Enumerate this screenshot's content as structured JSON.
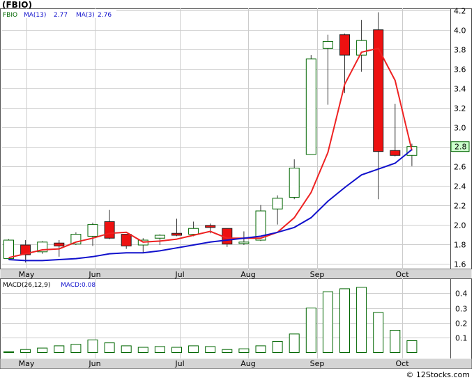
{
  "title": "(FBIO)",
  "watermark": "© 12Stocks.com",
  "legend": {
    "ticker": "FBIO",
    "ma13_label": "MA(13)",
    "ma13_value": "2.77",
    "ma3_label": "MA(3)",
    "ma3_value": "2.76"
  },
  "macd_legend": {
    "label": "MACD(26,12,9)",
    "value_label": "MACD:0.08"
  },
  "last_price_tag": "2.8",
  "colors": {
    "up": "#ffffff",
    "up_border": "#006600",
    "down": "#ee1111",
    "ma13": "#1111cc",
    "ma3": "#ee2222",
    "ticker_text": "#006600",
    "ma_text": "#1111cc",
    "tag_bg": "#ccffcc"
  },
  "chart_data": [
    {
      "type": "candlestick",
      "x_labels": [
        "May",
        "Jun",
        "Jul",
        "Aug",
        "Sep",
        "Oct"
      ],
      "y_ticks": [
        1.6,
        1.8,
        2.0,
        2.2,
        2.4,
        2.6,
        2.8,
        3.0,
        3.2,
        3.4,
        3.6,
        3.8,
        4.0,
        4.2
      ],
      "ylim": [
        1.54,
        4.22
      ],
      "candles": [
        {
          "o": 1.65,
          "h": 1.85,
          "l": 1.64,
          "c": 1.84
        },
        {
          "o": 1.79,
          "h": 1.84,
          "l": 1.61,
          "c": 1.69
        },
        {
          "o": 1.72,
          "h": 1.83,
          "l": 1.7,
          "c": 1.82
        },
        {
          "o": 1.81,
          "h": 1.84,
          "l": 1.67,
          "c": 1.78
        },
        {
          "o": 1.8,
          "h": 1.92,
          "l": 1.79,
          "c": 1.9
        },
        {
          "o": 1.88,
          "h": 2.02,
          "l": 1.78,
          "c": 2.0
        },
        {
          "o": 2.03,
          "h": 2.15,
          "l": 1.85,
          "c": 1.86
        },
        {
          "o": 1.9,
          "h": 1.9,
          "l": 1.75,
          "c": 1.78
        },
        {
          "o": 1.79,
          "h": 1.86,
          "l": 1.71,
          "c": 1.84
        },
        {
          "o": 1.86,
          "h": 1.9,
          "l": 1.79,
          "c": 1.89
        },
        {
          "o": 1.91,
          "h": 2.06,
          "l": 1.88,
          "c": 1.89
        },
        {
          "o": 1.9,
          "h": 2.03,
          "l": 1.88,
          "c": 1.96
        },
        {
          "o": 1.99,
          "h": 2.01,
          "l": 1.91,
          "c": 1.97
        },
        {
          "o": 1.96,
          "h": 1.96,
          "l": 1.77,
          "c": 1.8
        },
        {
          "o": 1.81,
          "h": 1.93,
          "l": 1.79,
          "c": 1.82
        },
        {
          "o": 1.84,
          "h": 2.2,
          "l": 1.83,
          "c": 2.14
        },
        {
          "o": 2.16,
          "h": 2.3,
          "l": 2.0,
          "c": 2.27
        },
        {
          "o": 2.28,
          "h": 2.67,
          "l": 2.26,
          "c": 2.58
        },
        {
          "o": 2.72,
          "h": 3.74,
          "l": 2.72,
          "c": 3.7
        },
        {
          "o": 3.81,
          "h": 3.95,
          "l": 3.23,
          "c": 3.88
        },
        {
          "o": 3.95,
          "h": 3.96,
          "l": 3.35,
          "c": 3.74
        },
        {
          "o": 3.74,
          "h": 4.1,
          "l": 3.57,
          "c": 3.89
        },
        {
          "o": 4.0,
          "h": 4.18,
          "l": 2.26,
          "c": 2.75
        },
        {
          "o": 2.76,
          "h": 3.24,
          "l": 2.7,
          "c": 2.71
        },
        {
          "o": 2.71,
          "h": 2.83,
          "l": 2.6,
          "c": 2.8
        }
      ],
      "ma13": [
        1.64,
        1.63,
        1.63,
        1.64,
        1.65,
        1.67,
        1.7,
        1.71,
        1.71,
        1.73,
        1.76,
        1.79,
        1.82,
        1.84,
        1.86,
        1.88,
        1.92,
        1.97,
        2.07,
        2.24,
        2.38,
        2.51,
        2.57,
        2.63,
        2.77
      ],
      "ma3": [
        1.66,
        1.7,
        1.74,
        1.75,
        1.82,
        1.86,
        1.91,
        1.92,
        1.82,
        1.83,
        1.85,
        1.89,
        1.93,
        1.86,
        1.86,
        1.86,
        1.92,
        2.07,
        2.33,
        2.74,
        3.44,
        3.77,
        3.81,
        3.48,
        2.76
      ]
    },
    {
      "type": "bar",
      "name": "MACD(26,12,9)",
      "x_labels": [
        "May",
        "Jun",
        "Jul",
        "Aug",
        "Sep",
        "Oct"
      ],
      "y_ticks": [
        0.1,
        0.2,
        0.3,
        0.4
      ],
      "ylim": [
        -0.04,
        0.5
      ],
      "values": [
        0.005,
        0.02,
        0.03,
        0.045,
        0.055,
        0.085,
        0.065,
        0.045,
        0.035,
        0.04,
        0.035,
        0.045,
        0.04,
        0.02,
        0.025,
        0.045,
        0.075,
        0.125,
        0.3,
        0.41,
        0.43,
        0.44,
        0.27,
        0.15,
        0.08
      ]
    }
  ]
}
